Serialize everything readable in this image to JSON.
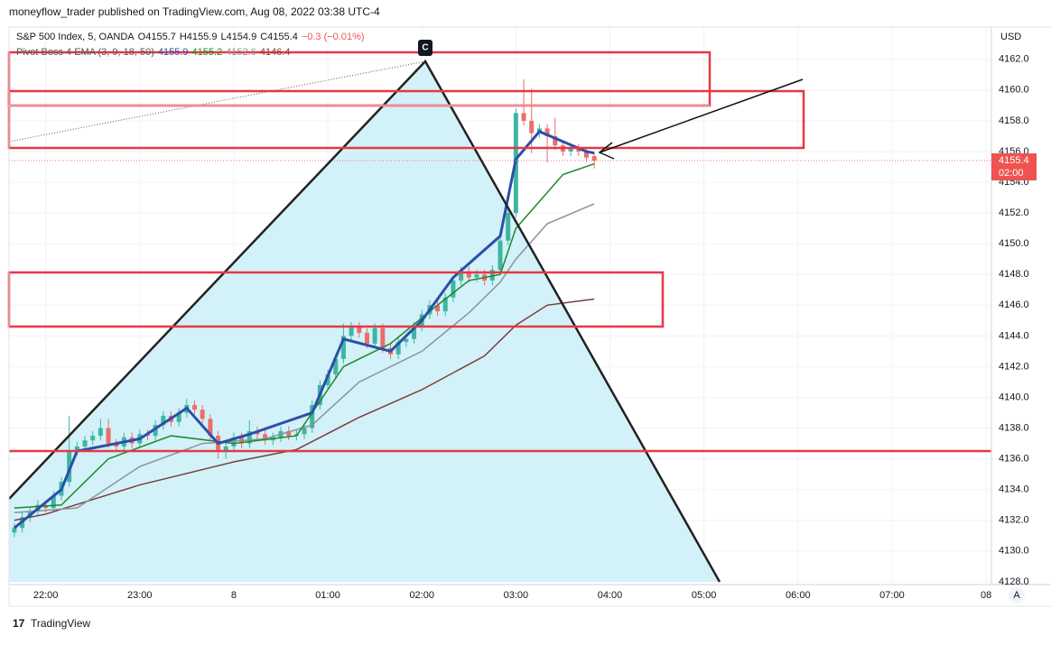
{
  "header": {
    "publisher": "moneyflow_trader published on TradingView.com, Aug 08, 2022 03:38 UTC-4",
    "footer": "TradingView"
  },
  "legend": {
    "symbol": "S&P 500 Index, 5, OANDA",
    "ohlc": [
      "O4155.7",
      "H4155.9",
      "L4154.9",
      "C4155.4",
      "−0.3 (−0.01%)"
    ],
    "indicator": "Pivot Boss 4 EMA (3, 9, 18, 50)",
    "indicator_values": [
      "4155.9",
      "4155.2",
      "4152.6",
      "4146.4"
    ]
  },
  "axis_currency": "USD",
  "price_tag": {
    "price": "4155.4",
    "countdown": "02:00"
  },
  "pattern_point": "C",
  "scale_button": "A",
  "chart_data": {
    "type": "candlestick",
    "up_color": "#3fb5a3",
    "down_color": "#ee6c6c",
    "grid": true,
    "xlim": [
      -23.4,
      603.4
    ],
    "xticks": [
      {
        "value": 0,
        "label": "22:00"
      },
      {
        "value": 60,
        "label": "23:00"
      },
      {
        "value": 120,
        "label": "8"
      },
      {
        "value": 180,
        "label": "01:00"
      },
      {
        "value": 240,
        "label": "02:00"
      },
      {
        "value": 300,
        "label": "03:00"
      },
      {
        "value": 360,
        "label": "04:00"
      },
      {
        "value": 420,
        "label": "05:00"
      },
      {
        "value": 480,
        "label": "06:00"
      },
      {
        "value": 540,
        "label": "07:00"
      },
      {
        "value": 600,
        "label": "08"
      }
    ],
    "ylim": [
      4127.7,
      4164.1
    ],
    "yticks": [
      {
        "value": 4128,
        "label": "4128.0"
      },
      {
        "value": 4130,
        "label": "4130.0"
      },
      {
        "value": 4132,
        "label": "4132.0"
      },
      {
        "value": 4134,
        "label": "4134.0"
      },
      {
        "value": 4136,
        "label": "4136.0"
      },
      {
        "value": 4138,
        "label": "4138.0"
      },
      {
        "value": 4140,
        "label": "4140.0"
      },
      {
        "value": 4142,
        "label": "4142.0"
      },
      {
        "value": 4144,
        "label": "4144.0"
      },
      {
        "value": 4146,
        "label": "4146.0"
      },
      {
        "value": 4148,
        "label": "4148.0"
      },
      {
        "value": 4150,
        "label": "4150.0"
      },
      {
        "value": 4152,
        "label": "4152.0"
      },
      {
        "value": 4154,
        "label": "4154.0"
      },
      {
        "value": 4156,
        "label": "4156.0"
      },
      {
        "value": 4158,
        "label": "4158.0"
      },
      {
        "value": 4160,
        "label": "4160.0"
      },
      {
        "value": 4162,
        "label": "4162.0"
      }
    ],
    "x": [
      -20,
      -15,
      -10,
      -5,
      0,
      5,
      10,
      15,
      20,
      25,
      30,
      35,
      40,
      45,
      50,
      55,
      60,
      65,
      70,
      75,
      80,
      85,
      90,
      95,
      100,
      105,
      110,
      115,
      120,
      125,
      130,
      135,
      140,
      145,
      150,
      155,
      160,
      165,
      170,
      175,
      180,
      185,
      190,
      195,
      200,
      205,
      210,
      215,
      220,
      225,
      230,
      235,
      240,
      245,
      250,
      255,
      260,
      265,
      270,
      275,
      280,
      285,
      290,
      295,
      300,
      305,
      310,
      315,
      320,
      325,
      330,
      335,
      340,
      345,
      350
    ],
    "open": [
      4131.2,
      4131.5,
      4132.2,
      4132.6,
      4133.0,
      4132.8,
      4133.6,
      4134.5,
      4136.5,
      4136.8,
      4137.2,
      4137.5,
      4138.0,
      4137.0,
      4136.8,
      4137.4,
      4137.0,
      4137.6,
      4137.5,
      4138.2,
      4138.8,
      4138.4,
      4139.0,
      4139.5,
      4139.2,
      4138.6,
      4137.5,
      4136.5,
      4136.8,
      4137.4,
      4137.0,
      4137.8,
      4137.6,
      4137.2,
      4137.4,
      4137.8,
      4137.5,
      4137.6,
      4138.0,
      4139.5,
      4140.8,
      4141.5,
      4142.5,
      4144.0,
      4144.6,
      4144.2,
      4143.5,
      4144.5,
      4143.2,
      4142.8,
      4143.6,
      4143.8,
      4144.6,
      4145.4,
      4146.0,
      4145.6,
      4146.5,
      4147.6,
      4148.2,
      4147.8,
      4148.0,
      4147.6,
      4148.3,
      4150.2,
      4152.0,
      4158.5,
      4158.0,
      4157.2,
      4157.5,
      4157.0,
      4156.4,
      4156.0,
      4156.2,
      4156.0,
      4155.7
    ],
    "high": [
      4131.8,
      4132.5,
      4132.9,
      4133.3,
      4133.3,
      4133.9,
      4134.8,
      4138.8,
      4137.1,
      4137.5,
      4137.8,
      4138.6,
      4138.6,
      4137.3,
      4137.7,
      4137.7,
      4137.9,
      4137.9,
      4138.5,
      4139.1,
      4139.1,
      4139.3,
      4139.9,
      4139.8,
      4139.5,
      4138.9,
      4137.8,
      4137.1,
      4137.7,
      4137.7,
      4138.5,
      4138.1,
      4137.9,
      4137.7,
      4138.1,
      4138.1,
      4137.9,
      4138.3,
      4139.8,
      4141.1,
      4141.8,
      4142.8,
      4144.8,
      4144.9,
      4144.9,
      4144.5,
      4144.8,
      4144.8,
      4143.5,
      4143.9,
      4144.1,
      4144.9,
      4145.7,
      4146.3,
      4146.3,
      4146.8,
      4147.9,
      4148.5,
      4148.5,
      4148.3,
      4148.3,
      4148.6,
      4150.5,
      4152.3,
      4158.8,
      4160.7,
      4160.1,
      4157.8,
      4157.8,
      4158.2,
      4156.7,
      4156.5,
      4156.5,
      4156.3,
      4155.9
    ],
    "low": [
      4130.9,
      4131.2,
      4131.9,
      4132.3,
      4132.5,
      4132.5,
      4133.3,
      4134.2,
      4136.2,
      4136.5,
      4136.9,
      4137.2,
      4136.7,
      4136.5,
      4136.5,
      4136.7,
      4136.7,
      4137.2,
      4137.2,
      4137.9,
      4138.1,
      4138.1,
      4138.7,
      4138.9,
      4138.3,
      4137.2,
      4136.0,
      4136.0,
      4136.5,
      4136.7,
      4136.7,
      4137.3,
      4136.9,
      4136.9,
      4137.1,
      4137.2,
      4137.2,
      4137.3,
      4137.7,
      4139.2,
      4140.5,
      4141.2,
      4142.2,
      4143.7,
      4143.9,
      4143.2,
      4143.2,
      4142.9,
      4142.5,
      4142.5,
      4143.3,
      4143.5,
      4144.3,
      4145.1,
      4145.3,
      4145.3,
      4146.2,
      4147.3,
      4147.5,
      4147.5,
      4147.3,
      4147.3,
      4148.0,
      4149.9,
      4151.7,
      4157.7,
      4155.9,
      4156.9,
      4155.3,
      4156.1,
      4155.7,
      4155.7,
      4155.7,
      4155.3,
      4154.9
    ],
    "close": [
      4131.5,
      4132.2,
      4132.6,
      4133.0,
      4132.8,
      4133.6,
      4134.5,
      4136.5,
      4136.8,
      4137.2,
      4137.5,
      4138.0,
      4137.0,
      4136.8,
      4137.4,
      4137.0,
      4137.6,
      4137.5,
      4138.2,
      4138.8,
      4138.4,
      4139.0,
      4139.5,
      4139.2,
      4138.6,
      4137.5,
      4136.5,
      4136.8,
      4137.4,
      4137.0,
      4137.8,
      4137.6,
      4137.2,
      4137.4,
      4137.8,
      4137.5,
      4137.6,
      4138.0,
      4139.5,
      4140.8,
      4141.5,
      4142.5,
      4144.0,
      4144.6,
      4144.2,
      4143.5,
      4144.5,
      4143.2,
      4142.8,
      4143.6,
      4143.8,
      4144.6,
      4145.4,
      4146.0,
      4145.6,
      4146.5,
      4147.6,
      4148.2,
      4147.8,
      4148.0,
      4147.6,
      4148.3,
      4150.2,
      4152.0,
      4158.5,
      4158.0,
      4157.2,
      4157.5,
      4157.0,
      4156.4,
      4156.0,
      4156.2,
      4156.0,
      4155.6,
      4155.4
    ],
    "lines": [
      {
        "color": "#7d3c3c",
        "width": 1.5,
        "x": [
          -20,
          0,
          60,
          120,
          160,
          200,
          240,
          280,
          300,
          320,
          350
        ],
        "values": [
          4132,
          4132.4,
          4134.3,
          4135.8,
          4136.6,
          4138.7,
          4140.5,
          4142.7,
          4144.7,
          4146,
          4146.4
        ]
      },
      {
        "color": "#8a939c",
        "width": 1.5,
        "x": [
          -20,
          20,
          60,
          100,
          140,
          170,
          200,
          240,
          270,
          290,
          300,
          320,
          350
        ],
        "values": [
          4132.5,
          4132.8,
          4135.5,
          4137,
          4137.3,
          4138.2,
          4141,
          4143,
          4145.5,
          4147.5,
          4149,
          4151.3,
          4152.6
        ]
      },
      {
        "color": "#1b8a2a",
        "width": 1.5,
        "x": [
          -20,
          10,
          40,
          80,
          120,
          160,
          190,
          220,
          250,
          270,
          290,
          300,
          330,
          350
        ],
        "values": [
          4132.8,
          4133,
          4136,
          4137.5,
          4137,
          4137.5,
          4142,
          4143.5,
          4146,
          4147.6,
          4148,
          4151,
          4154.5,
          4155.2
        ]
      },
      {
        "color": "#2b4fa8",
        "width": 3,
        "x": [
          -20,
          10,
          20,
          60,
          90,
          110,
          130,
          170,
          190,
          220,
          240,
          260,
          290,
          300,
          315,
          345,
          350
        ],
        "values": [
          4131.5,
          4134,
          4136.5,
          4137.3,
          4139.3,
          4137,
          4137.6,
          4139,
          4143.8,
          4143,
          4145,
          4147.8,
          4150.5,
          4155.5,
          4157.3,
          4156,
          4155.9
        ]
      }
    ]
  }
}
